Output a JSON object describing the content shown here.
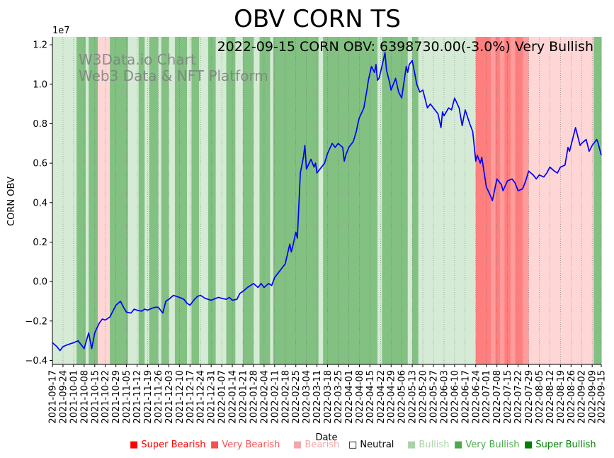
{
  "chart_data": {
    "type": "line",
    "title": "OBV CORN TS",
    "subtitle": "2022-09-15 CORN OBV: 6398730.00(-3.0%) Very Bullish",
    "watermark": [
      "W3Data.io Chart",
      "Web3 Data & NFT Platform"
    ],
    "xlabel": "Date",
    "ylabel": "CORN OBV",
    "y_scale_label": "1e7",
    "ylim": [
      -4.2,
      12.4
    ],
    "yticks": [
      -0.4,
      -0.2,
      0.0,
      0.2,
      0.4,
      0.6,
      0.8,
      1.0,
      1.2
    ],
    "ytick_labels": [
      "−0.4",
      "−0.2",
      "0.0",
      "0.2",
      "0.4",
      "0.6",
      "0.8",
      "1.0",
      "1.2"
    ],
    "x_start": "2021-09-17",
    "x_end": "2022-09-15",
    "x_ticks": [
      "2021-09-17",
      "2021-09-24",
      "2021-10-01",
      "2021-10-08",
      "2021-10-15",
      "2021-10-22",
      "2021-10-29",
      "2021-11-05",
      "2021-11-12",
      "2021-11-19",
      "2021-11-26",
      "2021-12-03",
      "2021-12-10",
      "2021-12-17",
      "2021-12-24",
      "2021-12-31",
      "2022-01-07",
      "2022-01-14",
      "2022-01-21",
      "2022-01-28",
      "2022-02-04",
      "2022-02-11",
      "2022-02-18",
      "2022-02-25",
      "2022-03-04",
      "2022-03-11",
      "2022-03-18",
      "2022-03-25",
      "2022-04-01",
      "2022-04-08",
      "2022-04-15",
      "2022-04-22",
      "2022-04-29",
      "2022-05-06",
      "2022-05-13",
      "2022-05-20",
      "2022-05-27",
      "2022-06-03",
      "2022-06-10",
      "2022-06-17",
      "2022-06-24",
      "2022-07-01",
      "2022-07-08",
      "2022-07-15",
      "2022-07-22",
      "2022-07-29",
      "2022-08-05",
      "2022-08-12",
      "2022-08-19",
      "2022-08-26",
      "2022-09-02",
      "2022-09-09",
      "2022-09-15"
    ],
    "series": [
      {
        "name": "CORN OBV",
        "color": "#0000ff",
        "unit": "1e6",
        "points": [
          [
            "2021-09-17",
            -3.1
          ],
          [
            "2021-09-20",
            -3.3
          ],
          [
            "2021-09-22",
            -3.5
          ],
          [
            "2021-09-24",
            -3.3
          ],
          [
            "2021-09-27",
            -3.2
          ],
          [
            "2021-09-29",
            -3.15
          ],
          [
            "2021-10-01",
            -3.1
          ],
          [
            "2021-10-04",
            -3.0
          ],
          [
            "2021-10-06",
            -3.2
          ],
          [
            "2021-10-08",
            -3.4
          ],
          [
            "2021-10-11",
            -2.6
          ],
          [
            "2021-10-13",
            -3.4
          ],
          [
            "2021-10-15",
            -2.6
          ],
          [
            "2021-10-18",
            -2.1
          ],
          [
            "2021-10-20",
            -1.9
          ],
          [
            "2021-10-22",
            -1.95
          ],
          [
            "2021-10-25",
            -1.8
          ],
          [
            "2021-10-27",
            -1.5
          ],
          [
            "2021-10-29",
            -1.2
          ],
          [
            "2021-11-01",
            -1.0
          ],
          [
            "2021-11-03",
            -1.3
          ],
          [
            "2021-11-05",
            -1.55
          ],
          [
            "2021-11-08",
            -1.6
          ],
          [
            "2021-11-10",
            -1.4
          ],
          [
            "2021-11-12",
            -1.45
          ],
          [
            "2021-11-15",
            -1.5
          ],
          [
            "2021-11-17",
            -1.4
          ],
          [
            "2021-11-19",
            -1.45
          ],
          [
            "2021-11-22",
            -1.35
          ],
          [
            "2021-11-24",
            -1.3
          ],
          [
            "2021-11-26",
            -1.3
          ],
          [
            "2021-11-29",
            -1.6
          ],
          [
            "2021-12-01",
            -1.0
          ],
          [
            "2021-12-03",
            -0.9
          ],
          [
            "2021-12-06",
            -0.7
          ],
          [
            "2021-12-08",
            -0.75
          ],
          [
            "2021-12-10",
            -0.8
          ],
          [
            "2021-12-13",
            -0.9
          ],
          [
            "2021-12-15",
            -1.1
          ],
          [
            "2021-12-17",
            -1.2
          ],
          [
            "2021-12-20",
            -0.9
          ],
          [
            "2021-12-22",
            -0.75
          ],
          [
            "2021-12-24",
            -0.7
          ],
          [
            "2021-12-27",
            -0.85
          ],
          [
            "2021-12-29",
            -0.9
          ],
          [
            "2021-12-31",
            -0.95
          ],
          [
            "2022-01-03",
            -0.85
          ],
          [
            "2022-01-05",
            -0.8
          ],
          [
            "2022-01-07",
            -0.85
          ],
          [
            "2022-01-10",
            -0.9
          ],
          [
            "2022-01-12",
            -0.8
          ],
          [
            "2022-01-14",
            -0.95
          ],
          [
            "2022-01-17",
            -0.9
          ],
          [
            "2022-01-19",
            -0.6
          ],
          [
            "2022-01-21",
            -0.5
          ],
          [
            "2022-01-24",
            -0.3
          ],
          [
            "2022-01-26",
            -0.2
          ],
          [
            "2022-01-28",
            -0.1
          ],
          [
            "2022-01-31",
            -0.3
          ],
          [
            "2022-02-02",
            -0.1
          ],
          [
            "2022-02-04",
            -0.3
          ],
          [
            "2022-02-07",
            -0.1
          ],
          [
            "2022-02-09",
            -0.2
          ],
          [
            "2022-02-11",
            0.2
          ],
          [
            "2022-02-14",
            0.5
          ],
          [
            "2022-02-16",
            0.7
          ],
          [
            "2022-02-18",
            0.9
          ],
          [
            "2022-02-21",
            1.9
          ],
          [
            "2022-02-22",
            1.5
          ],
          [
            "2022-02-23",
            1.8
          ],
          [
            "2022-02-25",
            2.5
          ],
          [
            "2022-02-26",
            2.2
          ],
          [
            "2022-02-28",
            5.5
          ],
          [
            "2022-03-02",
            6.3
          ],
          [
            "2022-03-03",
            6.9
          ],
          [
            "2022-03-04",
            5.7
          ],
          [
            "2022-03-07",
            6.2
          ],
          [
            "2022-03-09",
            5.8
          ],
          [
            "2022-03-10",
            6.0
          ],
          [
            "2022-03-11",
            5.5
          ],
          [
            "2022-03-14",
            5.8
          ],
          [
            "2022-03-16",
            6.0
          ],
          [
            "2022-03-18",
            6.5
          ],
          [
            "2022-03-21",
            7.0
          ],
          [
            "2022-03-23",
            6.8
          ],
          [
            "2022-03-25",
            7.0
          ],
          [
            "2022-03-28",
            6.8
          ],
          [
            "2022-03-29",
            6.1
          ],
          [
            "2022-03-30",
            6.4
          ],
          [
            "2022-04-01",
            6.8
          ],
          [
            "2022-04-04",
            7.1
          ],
          [
            "2022-04-06",
            7.6
          ],
          [
            "2022-04-07",
            8.0
          ],
          [
            "2022-04-08",
            8.3
          ],
          [
            "2022-04-11",
            8.8
          ],
          [
            "2022-04-13",
            9.7
          ],
          [
            "2022-04-14",
            10.2
          ],
          [
            "2022-04-16",
            10.9
          ],
          [
            "2022-04-18",
            10.6
          ],
          [
            "2022-04-19",
            11.0
          ],
          [
            "2022-04-20",
            10.2
          ],
          [
            "2022-04-21",
            10.3
          ],
          [
            "2022-04-22",
            10.6
          ],
          [
            "2022-04-25",
            11.6
          ],
          [
            "2022-04-26",
            10.7
          ],
          [
            "2022-04-28",
            10.1
          ],
          [
            "2022-04-29",
            9.7
          ],
          [
            "2022-05-02",
            10.3
          ],
          [
            "2022-05-04",
            9.6
          ],
          [
            "2022-05-06",
            9.3
          ],
          [
            "2022-05-09",
            10.9
          ],
          [
            "2022-05-10",
            10.6
          ],
          [
            "2022-05-11",
            11.0
          ],
          [
            "2022-05-13",
            11.2
          ],
          [
            "2022-05-16",
            10.0
          ],
          [
            "2022-05-18",
            9.6
          ],
          [
            "2022-05-20",
            9.7
          ],
          [
            "2022-05-23",
            8.8
          ],
          [
            "2022-05-25",
            9.0
          ],
          [
            "2022-05-27",
            8.8
          ],
          [
            "2022-05-30",
            8.5
          ],
          [
            "2022-06-01",
            7.8
          ],
          [
            "2022-06-02",
            8.6
          ],
          [
            "2022-06-03",
            8.4
          ],
          [
            "2022-06-06",
            8.8
          ],
          [
            "2022-06-08",
            8.7
          ],
          [
            "2022-06-10",
            9.3
          ],
          [
            "2022-06-13",
            8.8
          ],
          [
            "2022-06-15",
            7.9
          ],
          [
            "2022-06-17",
            8.7
          ],
          [
            "2022-06-20",
            8.0
          ],
          [
            "2022-06-22",
            7.6
          ],
          [
            "2022-06-24",
            6.1
          ],
          [
            "2022-06-25",
            6.4
          ],
          [
            "2022-06-27",
            6.0
          ],
          [
            "2022-06-28",
            6.3
          ],
          [
            "2022-07-01",
            4.8
          ],
          [
            "2022-07-04",
            4.3
          ],
          [
            "2022-07-05",
            4.1
          ],
          [
            "2022-07-08",
            5.2
          ],
          [
            "2022-07-11",
            4.9
          ],
          [
            "2022-07-12",
            4.6
          ],
          [
            "2022-07-15",
            5.1
          ],
          [
            "2022-07-18",
            5.2
          ],
          [
            "2022-07-20",
            5.0
          ],
          [
            "2022-07-22",
            4.6
          ],
          [
            "2022-07-25",
            4.7
          ],
          [
            "2022-07-27",
            5.1
          ],
          [
            "2022-07-29",
            5.6
          ],
          [
            "2022-08-01",
            5.4
          ],
          [
            "2022-08-03",
            5.2
          ],
          [
            "2022-08-05",
            5.4
          ],
          [
            "2022-08-08",
            5.3
          ],
          [
            "2022-08-10",
            5.5
          ],
          [
            "2022-08-12",
            5.8
          ],
          [
            "2022-08-15",
            5.6
          ],
          [
            "2022-08-17",
            5.5
          ],
          [
            "2022-08-19",
            5.8
          ],
          [
            "2022-08-22",
            5.9
          ],
          [
            "2022-08-24",
            6.8
          ],
          [
            "2022-08-25",
            6.6
          ],
          [
            "2022-08-29",
            7.8
          ],
          [
            "2022-09-01",
            6.9
          ],
          [
            "2022-09-02",
            7.0
          ],
          [
            "2022-09-05",
            7.2
          ],
          [
            "2022-09-07",
            6.6
          ],
          [
            "2022-09-09",
            6.9
          ],
          [
            "2022-09-12",
            7.2
          ],
          [
            "2022-09-13",
            7.0
          ],
          [
            "2022-09-15",
            6.4
          ]
        ]
      }
    ],
    "regime_bands": [
      {
        "from": "2021-09-17",
        "to": "2021-10-03",
        "class": "bullish"
      },
      {
        "from": "2021-10-03",
        "to": "2021-10-09",
        "class": "very_bullish"
      },
      {
        "from": "2021-10-09",
        "to": "2021-10-11",
        "class": "bullish"
      },
      {
        "from": "2021-10-11",
        "to": "2021-10-17",
        "class": "very_bullish"
      },
      {
        "from": "2021-10-17",
        "to": "2021-10-25",
        "class": "bearish"
      },
      {
        "from": "2021-10-25",
        "to": "2021-11-06",
        "class": "very_bullish"
      },
      {
        "from": "2021-11-06",
        "to": "2021-11-13",
        "class": "bullish"
      },
      {
        "from": "2021-11-13",
        "to": "2021-11-17",
        "class": "very_bullish"
      },
      {
        "from": "2021-11-17",
        "to": "2021-11-20",
        "class": "bullish"
      },
      {
        "from": "2021-11-20",
        "to": "2021-11-26",
        "class": "very_bullish"
      },
      {
        "from": "2021-11-26",
        "to": "2021-11-28",
        "class": "bullish"
      },
      {
        "from": "2021-11-28",
        "to": "2021-12-03",
        "class": "very_bullish"
      },
      {
        "from": "2021-12-03",
        "to": "2021-12-07",
        "class": "bullish"
      },
      {
        "from": "2021-12-07",
        "to": "2021-12-15",
        "class": "very_bullish"
      },
      {
        "from": "2021-12-15",
        "to": "2021-12-18",
        "class": "bullish"
      },
      {
        "from": "2021-12-18",
        "to": "2021-12-23",
        "class": "very_bullish"
      },
      {
        "from": "2021-12-23",
        "to": "2021-12-29",
        "class": "bullish"
      },
      {
        "from": "2021-12-29",
        "to": "2022-01-03",
        "class": "very_bullish"
      },
      {
        "from": "2022-01-03",
        "to": "2022-01-10",
        "class": "bullish"
      },
      {
        "from": "2022-01-10",
        "to": "2022-01-16",
        "class": "very_bullish"
      },
      {
        "from": "2022-01-16",
        "to": "2022-01-21",
        "class": "bullish"
      },
      {
        "from": "2022-01-21",
        "to": "2022-01-28",
        "class": "very_bullish"
      },
      {
        "from": "2022-01-28",
        "to": "2022-02-01",
        "class": "bullish"
      },
      {
        "from": "2022-02-01",
        "to": "2022-02-08",
        "class": "very_bullish"
      },
      {
        "from": "2022-02-08",
        "to": "2022-02-10",
        "class": "bullish"
      },
      {
        "from": "2022-02-10",
        "to": "2022-03-12",
        "class": "very_bullish"
      },
      {
        "from": "2022-03-12",
        "to": "2022-03-15",
        "class": "bullish"
      },
      {
        "from": "2022-03-15",
        "to": "2022-04-20",
        "class": "very_bullish"
      },
      {
        "from": "2022-04-20",
        "to": "2022-04-23",
        "class": "bullish"
      },
      {
        "from": "2022-04-23",
        "to": "2022-05-10",
        "class": "very_bullish"
      },
      {
        "from": "2022-05-10",
        "to": "2022-05-13",
        "class": "bullish"
      },
      {
        "from": "2022-05-13",
        "to": "2022-05-17",
        "class": "very_bullish"
      },
      {
        "from": "2022-05-17",
        "to": "2022-06-24",
        "class": "bullish"
      },
      {
        "from": "2022-06-24",
        "to": "2022-07-04",
        "class": "super_bearish"
      },
      {
        "from": "2022-07-04",
        "to": "2022-07-07",
        "class": "very_bearish"
      },
      {
        "from": "2022-07-07",
        "to": "2022-07-10",
        "class": "super_bearish"
      },
      {
        "from": "2022-07-10",
        "to": "2022-07-13",
        "class": "very_bearish"
      },
      {
        "from": "2022-07-13",
        "to": "2022-07-17",
        "class": "super_bearish"
      },
      {
        "from": "2022-07-17",
        "to": "2022-07-20",
        "class": "very_bearish"
      },
      {
        "from": "2022-07-20",
        "to": "2022-07-25",
        "class": "super_bearish"
      },
      {
        "from": "2022-07-25",
        "to": "2022-07-29",
        "class": "very_bearish"
      },
      {
        "from": "2022-07-29",
        "to": "2022-09-10",
        "class": "bearish"
      },
      {
        "from": "2022-09-10",
        "to": "2022-09-15",
        "class": "very_bullish"
      }
    ],
    "legend": [
      {
        "key": "super_bearish",
        "label": "Super Bearish",
        "color": "#ff0000"
      },
      {
        "key": "very_bearish",
        "label": "Very Bearish",
        "color": "#f85050"
      },
      {
        "key": "bearish",
        "label": "Bearish",
        "color": "#f4a6a6"
      },
      {
        "key": "neutral",
        "label": "Neutral",
        "color": "#000000"
      },
      {
        "key": "bullish",
        "label": "Bullish",
        "color": "#a8d4a8"
      },
      {
        "key": "very_bullish",
        "label": "Very Bullish",
        "color": "#4caa4c"
      },
      {
        "key": "super_bullish",
        "label": "Super Bullish",
        "color": "#008000"
      }
    ],
    "band_colors": {
      "super_bearish": "#ff7f7f",
      "very_bearish": "#ff9c9c",
      "bearish": "#ffd6d6",
      "neutral": "#ffffff",
      "bullish": "#d5ebd5",
      "very_bullish": "#82c182",
      "super_bullish": "#3e9a3e"
    }
  }
}
